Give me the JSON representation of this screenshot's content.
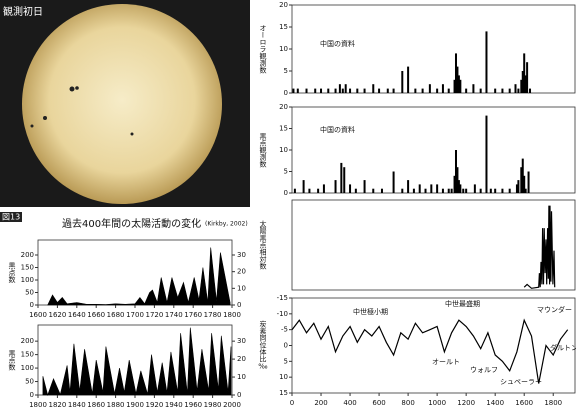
{
  "photo": {
    "label": "観測初日"
  },
  "figure": {
    "number": "図13",
    "title": "過去400年間の太陽活動の変化",
    "credit": "(Kirkby, 2002)"
  },
  "chart_data": [
    {
      "type": "bar",
      "y_label": "オーロラ観測数",
      "annotations": [
        "中国の資料"
      ],
      "xlim": [
        0,
        1950
      ],
      "ylim": [
        0,
        20
      ],
      "yticks": [
        0,
        5,
        10,
        15,
        20
      ],
      "color": "#000000",
      "x": [
        10,
        40,
        100,
        160,
        200,
        250,
        300,
        330,
        350,
        370,
        400,
        450,
        500,
        560,
        600,
        660,
        700,
        760,
        800,
        850,
        900,
        950,
        1000,
        1040,
        1080,
        1120,
        1130,
        1140,
        1150,
        1160,
        1200,
        1250,
        1300,
        1340,
        1400,
        1450,
        1500,
        1540,
        1560,
        1580,
        1590,
        1600,
        1610,
        1620,
        1640
      ],
      "values": [
        1,
        1,
        1,
        1,
        1,
        1,
        1,
        2,
        1,
        2,
        1,
        1,
        1,
        2,
        1,
        1,
        1,
        5,
        6,
        1,
        1,
        2,
        1,
        2,
        1,
        3,
        9,
        6,
        4,
        3,
        1,
        2,
        1,
        14,
        1,
        1,
        1,
        2,
        1,
        3,
        5,
        9,
        4,
        7,
        1
      ]
    },
    {
      "type": "bar",
      "y_label": "黒点観測数",
      "annotations": [
        "中国の資料"
      ],
      "xlim": [
        0,
        1950
      ],
      "ylim": [
        0,
        20
      ],
      "yticks": [
        0,
        5,
        10,
        15,
        20
      ],
      "color": "#000000",
      "x": [
        20,
        80,
        120,
        180,
        220,
        300,
        340,
        360,
        400,
        440,
        500,
        560,
        620,
        700,
        760,
        800,
        840,
        880,
        920,
        960,
        1000,
        1040,
        1080,
        1100,
        1120,
        1130,
        1140,
        1150,
        1160,
        1180,
        1200,
        1260,
        1300,
        1340,
        1370,
        1400,
        1450,
        1500,
        1550,
        1560,
        1580,
        1590,
        1600,
        1610,
        1630
      ],
      "values": [
        1,
        3,
        1,
        1,
        2,
        3,
        7,
        6,
        2,
        1,
        3,
        1,
        1,
        5,
        1,
        3,
        1,
        2,
        1,
        2,
        2,
        1,
        1,
        1,
        4,
        10,
        6,
        3,
        2,
        1,
        1,
        2,
        1,
        18,
        1,
        1,
        1,
        1,
        2,
        3,
        6,
        8,
        4,
        1,
        5
      ]
    },
    {
      "type": "line",
      "y_label": "太陽黒点相対数",
      "xlim": [
        0,
        1950
      ],
      "ylim": [
        0,
        160
      ],
      "color": "#000000",
      "x": [
        1600,
        1620,
        1650,
        1700,
        1705,
        1710,
        1716,
        1722,
        1727,
        1733,
        1738,
        1744,
        1750,
        1755,
        1761,
        1766,
        1770,
        1775,
        1778,
        1784,
        1788,
        1798,
        1805,
        1810
      ],
      "values": [
        5,
        10,
        3,
        5,
        30,
        5,
        50,
        10,
        110,
        10,
        110,
        30,
        90,
        10,
        110,
        20,
        150,
        10,
        150,
        15,
        140,
        10,
        70,
        5
      ]
    },
    {
      "type": "line",
      "y_label": "炭素同位体比‰",
      "annotations": [
        "中世極小期",
        "中世最盛期",
        "オールト",
        "ウォルフ",
        "シュペーラー",
        "マウンダー",
        "ダルトン"
      ],
      "xlim": [
        0,
        1950
      ],
      "ylim": [
        -15,
        15
      ],
      "inverted": true,
      "yticks": [
        -15,
        -10,
        -5,
        0,
        5,
        10,
        15
      ],
      "xticks": [
        0,
        200,
        400,
        600,
        800,
        1000,
        1200,
        1400,
        1600,
        1800
      ],
      "color": "#000000",
      "x": [
        0,
        50,
        100,
        150,
        200,
        250,
        300,
        350,
        400,
        450,
        500,
        550,
        600,
        650,
        700,
        750,
        800,
        850,
        900,
        950,
        1000,
        1050,
        1100,
        1150,
        1200,
        1250,
        1300,
        1350,
        1400,
        1450,
        1500,
        1550,
        1600,
        1650,
        1700,
        1750,
        1800,
        1850,
        1900
      ],
      "values": [
        -5,
        -8,
        -4,
        -7,
        -2,
        -6,
        2,
        -3,
        -6,
        -1,
        -5,
        -3,
        -6,
        -1,
        3,
        -4,
        -2,
        -7,
        -4,
        -5,
        -6,
        2,
        -4,
        -8,
        -6,
        -3,
        1,
        -4,
        3,
        5,
        8,
        2,
        -8,
        -3,
        12,
        0,
        3,
        -2,
        -5
      ]
    },
    {
      "type": "area",
      "y_label": "黒点数",
      "xlim": [
        1600,
        1800
      ],
      "xticks": [
        1600,
        1620,
        1640,
        1660,
        1680,
        1700,
        1720,
        1740,
        1760,
        1780,
        1800
      ],
      "ylim": [
        0,
        260
      ],
      "yticks": [
        0,
        50,
        100,
        150,
        200
      ],
      "y2lim": [
        0,
        39
      ],
      "y2ticks": [
        0,
        10,
        20,
        30
      ],
      "color": "#000000",
      "x": [
        1610,
        1615,
        1620,
        1625,
        1630,
        1640,
        1650,
        1660,
        1670,
        1680,
        1690,
        1700,
        1705,
        1710,
        1715,
        1718,
        1723,
        1727,
        1733,
        1738,
        1744,
        1750,
        1755,
        1761,
        1766,
        1770,
        1775,
        1778,
        1784,
        1788,
        1798
      ],
      "values": [
        0,
        40,
        10,
        30,
        5,
        10,
        3,
        3,
        2,
        5,
        3,
        5,
        30,
        5,
        50,
        60,
        10,
        110,
        10,
        110,
        30,
        90,
        10,
        110,
        20,
        150,
        10,
        230,
        15,
        210,
        10
      ]
    },
    {
      "type": "area",
      "y_label": "黒点数",
      "xlim": [
        1800,
        2000
      ],
      "xticks": [
        1800,
        1820,
        1840,
        1860,
        1880,
        1900,
        1920,
        1940,
        1960,
        1980,
        2000
      ],
      "ylim": [
        0,
        260
      ],
      "yticks": [
        0,
        50,
        100,
        150,
        200
      ],
      "y2lim": [
        0,
        39
      ],
      "y2ticks": [
        0,
        10,
        20,
        30
      ],
      "color": "#000000",
      "x": [
        1805,
        1810,
        1816,
        1823,
        1830,
        1833,
        1837,
        1843,
        1848,
        1856,
        1860,
        1867,
        1870,
        1879,
        1884,
        1889,
        1894,
        1901,
        1906,
        1913,
        1917,
        1923,
        1928,
        1933,
        1937,
        1944,
        1947,
        1954,
        1957,
        1964,
        1969,
        1976,
        1979,
        1986,
        1989,
        1996,
        1999
      ],
      "values": [
        70,
        0,
        60,
        2,
        110,
        10,
        190,
        15,
        170,
        5,
        130,
        10,
        180,
        5,
        100,
        10,
        130,
        5,
        90,
        3,
        150,
        10,
        120,
        8,
        160,
        10,
        230,
        5,
        250,
        15,
        170,
        15,
        230,
        20,
        220,
        10,
        180
      ]
    }
  ]
}
